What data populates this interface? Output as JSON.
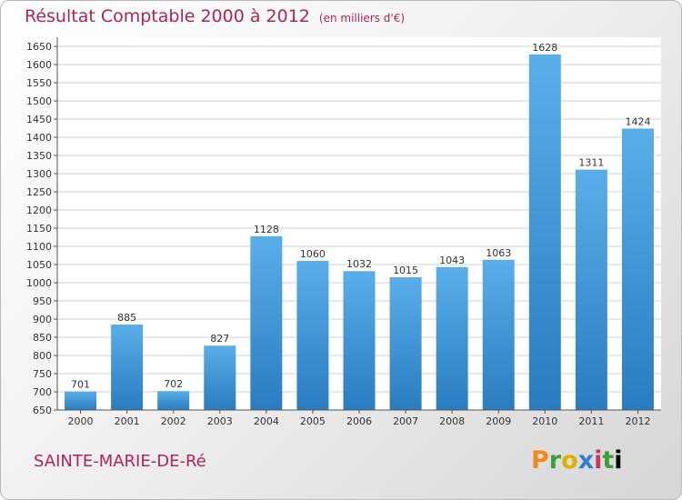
{
  "header": {
    "title": "Résultat Comptable 2000 à 2012",
    "subtitle": "(en milliers d'€)"
  },
  "footer": {
    "place": "SAINTE-MARIE-DE-Ré",
    "logo": [
      "P",
      "r",
      "o",
      "x",
      "i",
      "t",
      "i"
    ]
  },
  "chart_data": {
    "type": "bar",
    "title": "Résultat Comptable 2000 à 2012",
    "subtitle": "(en milliers d'€)",
    "categories": [
      "2000",
      "2001",
      "2002",
      "2003",
      "2004",
      "2005",
      "2006",
      "2007",
      "2008",
      "2009",
      "2010",
      "2011",
      "2012"
    ],
    "values": [
      701,
      885,
      702,
      827,
      1128,
      1060,
      1032,
      1015,
      1043,
      1063,
      1628,
      1311,
      1424
    ],
    "ylim": [
      650,
      1650
    ],
    "yticks": [
      650,
      700,
      750,
      800,
      850,
      900,
      950,
      1000,
      1050,
      1100,
      1150,
      1200,
      1250,
      1300,
      1350,
      1400,
      1450,
      1500,
      1550,
      1600,
      1650
    ],
    "grid": true,
    "bar_color": "#3a8fd6",
    "grid_color": "#d0d0d0"
  }
}
